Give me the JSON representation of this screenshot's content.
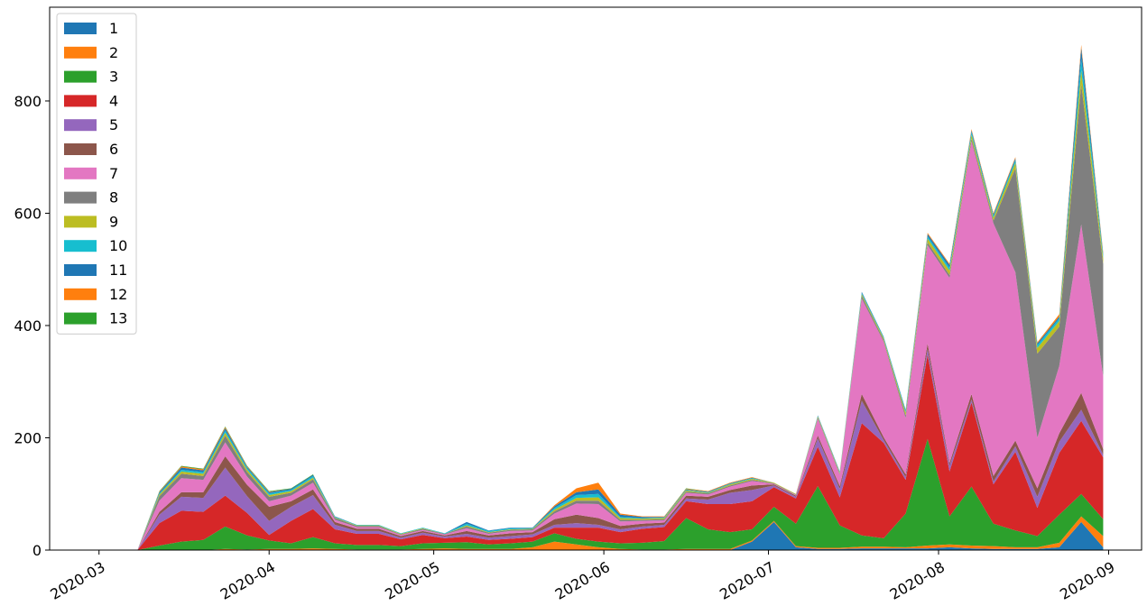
{
  "chart_data": {
    "type": "stackedarea",
    "x": [
      "2020-03-08",
      "2020-03-12",
      "2020-03-16",
      "2020-03-20",
      "2020-03-24",
      "2020-03-28",
      "2020-04-01",
      "2020-04-05",
      "2020-04-09",
      "2020-04-13",
      "2020-04-17",
      "2020-04-21",
      "2020-04-25",
      "2020-04-29",
      "2020-05-03",
      "2020-05-07",
      "2020-05-11",
      "2020-05-15",
      "2020-05-19",
      "2020-05-23",
      "2020-05-27",
      "2020-05-31",
      "2020-06-04",
      "2020-06-08",
      "2020-06-12",
      "2020-06-16",
      "2020-06-20",
      "2020-06-24",
      "2020-06-28",
      "2020-07-02",
      "2020-07-06",
      "2020-07-10",
      "2020-07-14",
      "2020-07-18",
      "2020-07-22",
      "2020-07-26",
      "2020-07-30",
      "2020-08-03",
      "2020-08-07",
      "2020-08-11",
      "2020-08-15",
      "2020-08-19",
      "2020-08-23",
      "2020-08-27",
      "2020-08-31"
    ],
    "xlim": [
      "2020-02-21",
      "2020-09-07"
    ],
    "xticks": [
      {
        "value": "2020-03-01",
        "label": "2020-03"
      },
      {
        "value": "2020-04-01",
        "label": "2020-04"
      },
      {
        "value": "2020-05-01",
        "label": "2020-05"
      },
      {
        "value": "2020-06-01",
        "label": "2020-06"
      },
      {
        "value": "2020-07-01",
        "label": "2020-07"
      },
      {
        "value": "2020-08-01",
        "label": "2020-08"
      },
      {
        "value": "2020-09-01",
        "label": "2020-09"
      }
    ],
    "ylim": [
      0,
      967
    ],
    "yticks": [
      0,
      200,
      400,
      600,
      800
    ],
    "legend": "upper left",
    "series": [
      {
        "name": "1",
        "color": "#1f77b4",
        "values": [
          0,
          0,
          0,
          0,
          0,
          0,
          0,
          0,
          0,
          0,
          0,
          0,
          0,
          0,
          0,
          0,
          0,
          0,
          0,
          0,
          0,
          0,
          0,
          0,
          0,
          0,
          0,
          0,
          15,
          50,
          5,
          2,
          2,
          3,
          3,
          3,
          3,
          5,
          3,
          2,
          2,
          2,
          5,
          50,
          5
        ]
      },
      {
        "name": "2",
        "color": "#ff7f0e",
        "values": [
          0,
          0,
          0,
          0,
          2,
          1,
          2,
          2,
          3,
          2,
          1,
          1,
          1,
          2,
          3,
          2,
          2,
          2,
          5,
          15,
          10,
          5,
          2,
          1,
          1,
          2,
          2,
          2,
          2,
          2,
          2,
          2,
          2,
          3,
          3,
          2,
          5,
          5,
          5,
          5,
          3,
          3,
          8,
          10,
          20
        ]
      },
      {
        "name": "3",
        "color": "#2ca02c",
        "values": [
          0,
          8,
          15,
          18,
          40,
          25,
          15,
          10,
          20,
          10,
          8,
          8,
          6,
          10,
          10,
          12,
          8,
          10,
          10,
          15,
          10,
          10,
          10,
          12,
          15,
          55,
          35,
          30,
          20,
          25,
          40,
          110,
          40,
          20,
          15,
          60,
          190,
          50,
          105,
          40,
          30,
          20,
          50,
          40,
          30
        ]
      },
      {
        "name": "4",
        "color": "#d62728",
        "values": [
          0,
          40,
          55,
          50,
          55,
          40,
          10,
          40,
          50,
          25,
          20,
          20,
          12,
          15,
          8,
          10,
          8,
          8,
          8,
          10,
          20,
          25,
          20,
          25,
          25,
          30,
          45,
          50,
          50,
          35,
          45,
          70,
          50,
          200,
          170,
          60,
          150,
          80,
          150,
          70,
          140,
          50,
          110,
          130,
          110
        ]
      },
      {
        "name": "5",
        "color": "#9467bd",
        "values": [
          0,
          15,
          25,
          25,
          50,
          30,
          25,
          25,
          25,
          8,
          5,
          5,
          3,
          4,
          3,
          5,
          4,
          5,
          5,
          5,
          8,
          5,
          5,
          4,
          4,
          5,
          8,
          20,
          20,
          3,
          3,
          15,
          15,
          40,
          5,
          5,
          10,
          10,
          5,
          5,
          10,
          20,
          20,
          20,
          5
        ]
      },
      {
        "name": "6",
        "color": "#8c564b",
        "values": [
          0,
          5,
          8,
          10,
          20,
          20,
          25,
          10,
          10,
          5,
          4,
          4,
          3,
          3,
          2,
          5,
          4,
          5,
          4,
          10,
          15,
          12,
          6,
          5,
          4,
          5,
          5,
          5,
          8,
          2,
          2,
          5,
          5,
          12,
          5,
          5,
          10,
          5,
          10,
          10,
          10,
          15,
          15,
          30,
          10
        ]
      },
      {
        "name": "7",
        "color": "#e377c2",
        "values": [
          0,
          20,
          25,
          22,
          25,
          15,
          10,
          10,
          12,
          4,
          3,
          3,
          2,
          2,
          2,
          5,
          3,
          4,
          3,
          10,
          20,
          25,
          8,
          5,
          4,
          5,
          4,
          6,
          8,
          1,
          1,
          30,
          20,
          170,
          170,
          100,
          175,
          330,
          450,
          450,
          300,
          90,
          120,
          300,
          130
        ]
      },
      {
        "name": "8",
        "color": "#7f7f7f",
        "values": [
          0,
          8,
          8,
          7,
          12,
          8,
          8,
          5,
          6,
          3,
          2,
          2,
          1,
          2,
          1,
          3,
          2,
          2,
          2,
          4,
          5,
          6,
          3,
          2,
          2,
          2,
          2,
          2,
          2,
          1,
          1,
          2,
          2,
          5,
          3,
          5,
          5,
          5,
          5,
          5,
          185,
          150,
          70,
          250,
          200
        ]
      },
      {
        "name": "9",
        "color": "#bcbd22",
        "values": [
          0,
          3,
          4,
          4,
          5,
          4,
          3,
          3,
          3,
          1,
          1,
          1,
          1,
          1,
          0,
          2,
          1,
          1,
          1,
          3,
          5,
          6,
          3,
          2,
          2,
          2,
          1,
          2,
          2,
          1,
          1,
          2,
          2,
          3,
          3,
          5,
          7,
          8,
          7,
          5,
          10,
          10,
          10,
          25,
          10
        ]
      },
      {
        "name": "10",
        "color": "#17becf",
        "values": [
          0,
          2,
          3,
          3,
          4,
          3,
          3,
          2,
          3,
          1,
          1,
          1,
          1,
          1,
          1,
          3,
          2,
          2,
          1,
          3,
          5,
          6,
          2,
          1,
          1,
          1,
          1,
          1,
          1,
          0,
          0,
          1,
          1,
          2,
          2,
          3,
          4,
          5,
          5,
          3,
          5,
          5,
          5,
          20,
          5
        ]
      },
      {
        "name": "11",
        "color": "#1f77b4",
        "values": [
          0,
          2,
          4,
          3,
          4,
          2,
          2,
          2,
          2,
          1,
          0,
          0,
          0,
          0,
          0,
          3,
          1,
          1,
          1,
          3,
          5,
          8,
          4,
          2,
          1,
          1,
          1,
          1,
          1,
          0,
          0,
          1,
          1,
          2,
          1,
          2,
          4,
          5,
          3,
          3,
          3,
          3,
          3,
          20,
          3
        ]
      },
      {
        "name": "12",
        "color": "#ff7f0e",
        "values": [
          0,
          1,
          2,
          2,
          2,
          1,
          1,
          0,
          0,
          0,
          0,
          0,
          0,
          0,
          0,
          0,
          0,
          0,
          0,
          2,
          7,
          12,
          2,
          1,
          1,
          1,
          1,
          1,
          1,
          0,
          0,
          0,
          0,
          0,
          0,
          0,
          2,
          2,
          2,
          2,
          2,
          2,
          4,
          5,
          2
        ]
      },
      {
        "name": "13",
        "color": "#2ca02c",
        "values": [
          0,
          1,
          1,
          1,
          1,
          1,
          1,
          1,
          1,
          0,
          0,
          0,
          0,
          0,
          0,
          0,
          0,
          0,
          0,
          0,
          0,
          0,
          0,
          0,
          0,
          1,
          0,
          0,
          0,
          0,
          0,
          0,
          0,
          0,
          0,
          0,
          0,
          0,
          0,
          0,
          0,
          0,
          0,
          0,
          0
        ]
      }
    ]
  }
}
